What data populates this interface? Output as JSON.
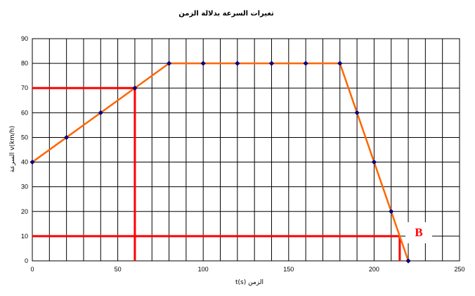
{
  "chart_data": {
    "type": "line",
    "title": "تغيرات السرعة بدلالة الزمن",
    "xlabel": "t(s)   الزمن",
    "ylabel": "السرعة v(km/h)",
    "xlim": [
      0,
      250
    ],
    "ylim": [
      0,
      90
    ],
    "x_ticks": [
      0,
      50,
      100,
      150,
      200,
      250
    ],
    "y_ticks": [
      0,
      10,
      20,
      30,
      40,
      50,
      60,
      70,
      80,
      90
    ],
    "grid": true,
    "series": [
      {
        "points": [
          {
            "x": 0,
            "y": 40
          },
          {
            "x": 20,
            "y": 50
          },
          {
            "x": 40,
            "y": 60
          },
          {
            "x": 60,
            "y": 70
          },
          {
            "x": 80,
            "y": 80
          },
          {
            "x": 100,
            "y": 80
          },
          {
            "x": 120,
            "y": 80
          },
          {
            "x": 140,
            "y": 80
          },
          {
            "x": 160,
            "y": 80
          },
          {
            "x": 180,
            "y": 80
          },
          {
            "x": 190,
            "y": 60
          },
          {
            "x": 200,
            "y": 40
          },
          {
            "x": 210,
            "y": 20
          },
          {
            "x": 220,
            "y": 0
          }
        ],
        "line_color": "#ff6600",
        "marker_color": "#000080"
      }
    ],
    "reference_lines": [
      {
        "from": {
          "x": 0,
          "y": 70
        },
        "to": {
          "x": 60,
          "y": 70
        }
      },
      {
        "from": {
          "x": 60,
          "y": 70
        },
        "to": {
          "x": 60,
          "y": 0
        }
      },
      {
        "from": {
          "x": 0,
          "y": 10
        },
        "to": {
          "x": 215,
          "y": 10
        }
      },
      {
        "from": {
          "x": 215,
          "y": 10
        },
        "to": {
          "x": 215,
          "y": 0
        }
      }
    ],
    "reference_color": "#ff0000",
    "annotations": [
      {
        "text": "B",
        "x": 225,
        "y": 12
      }
    ]
  }
}
